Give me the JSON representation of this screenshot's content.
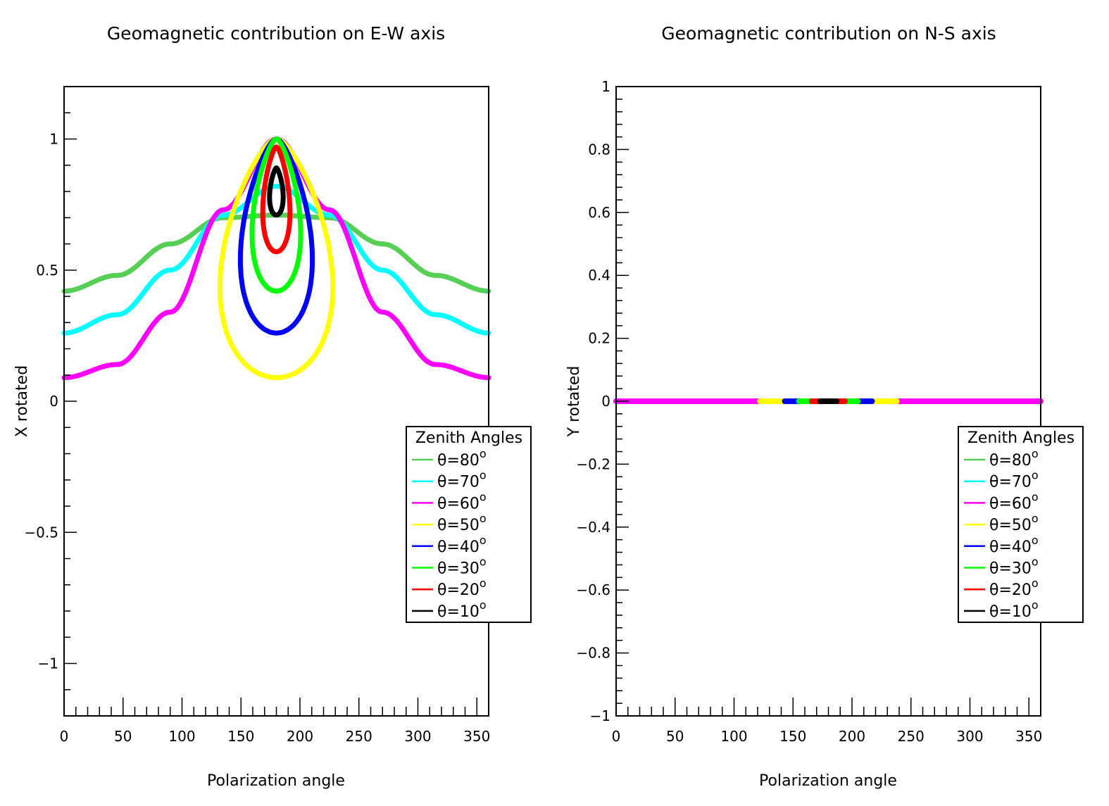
{
  "chart_data": [
    {
      "type": "scatter",
      "title": "Geomagnetic contribution on E-W axis",
      "xlabel": "Polarization angle",
      "ylabel": "X rotated",
      "xlim": [
        0,
        360
      ],
      "ylim": [
        -1.2,
        1.2
      ],
      "x_ticks": [
        "0",
        "50",
        "100",
        "150",
        "200",
        "250",
        "300",
        "350"
      ],
      "y_ticks": [
        {
          "value": 1,
          "label": "1"
        },
        {
          "value": 0.5,
          "label": "0.5"
        },
        {
          "value": 0,
          "label": "0"
        },
        {
          "value": -0.5,
          "label": "−0.5"
        },
        {
          "value": -1,
          "label": "−1"
        }
      ],
      "legend": {
        "title": "Zenith Angles",
        "placement": "right",
        "entries": [
          "θ=80",
          "θ=70",
          "θ=60",
          "θ=50",
          "θ=40",
          "θ=30",
          "θ=20",
          "θ=10"
        ],
        "superscript": "o"
      },
      "series": [
        {
          "name": "θ=80",
          "zenith_deg": 80,
          "color": "#55d055",
          "points": [
            [
              0,
              0.42
            ],
            [
              45,
              0.48
            ],
            [
              90,
              0.6
            ],
            [
              135,
              0.7
            ],
            [
              180,
              0.71
            ],
            [
              225,
              0.7
            ],
            [
              270,
              0.6
            ],
            [
              315,
              0.48
            ],
            [
              360,
              0.42
            ]
          ]
        },
        {
          "name": "θ=70",
          "zenith_deg": 70,
          "color": "#00ffff",
          "points": [
            [
              0,
              0.26
            ],
            [
              45,
              0.33
            ],
            [
              90,
              0.5
            ],
            [
              135,
              0.71
            ],
            [
              180,
              0.82
            ],
            [
              225,
              0.71
            ],
            [
              270,
              0.5
            ],
            [
              315,
              0.33
            ],
            [
              360,
              0.26
            ]
          ]
        },
        {
          "name": "θ=60",
          "zenith_deg": 60,
          "color": "#ff00ff",
          "points": [
            [
              0,
              0.09
            ],
            [
              45,
              0.14
            ],
            [
              90,
              0.34
            ],
            [
              135,
              0.73
            ],
            [
              180,
              1.0
            ],
            [
              225,
              0.73
            ],
            [
              270,
              0.34
            ],
            [
              315,
              0.14
            ],
            [
              360,
              0.09
            ]
          ]
        },
        {
          "name": "θ=50",
          "zenith_deg": 50,
          "color": "#ffff00",
          "loop": {
            "x_range": [
              122,
              238
            ],
            "y_range": [
              0.09,
              1.0
            ]
          }
        },
        {
          "name": "θ=40",
          "zenith_deg": 40,
          "color": "#0000ff",
          "loop": {
            "x_range": [
              143,
              217
            ],
            "y_range": [
              0.26,
              1.0
            ]
          }
        },
        {
          "name": "θ=30",
          "zenith_deg": 30,
          "color": "#00ff00",
          "loop": {
            "x_range": [
              155,
              205
            ],
            "y_range": [
              0.42,
              1.0
            ]
          }
        },
        {
          "name": "θ=20",
          "zenith_deg": 20,
          "color": "#ff0000",
          "loop": {
            "x_range": [
              166,
              194
            ],
            "y_range": [
              0.57,
              0.97
            ]
          }
        },
        {
          "name": "θ=10",
          "zenith_deg": 10,
          "color": "#000000",
          "loop": {
            "x_range": [
              173,
              187
            ],
            "y_range": [
              0.71,
              0.89
            ]
          }
        }
      ]
    },
    {
      "type": "scatter",
      "title": "Geomagnetic contribution on N-S axis",
      "xlabel": "Polarization angle",
      "ylabel": "Y rotated",
      "xlim": [
        0,
        360
      ],
      "ylim": [
        -1,
        1
      ],
      "x_ticks": [
        "0",
        "50",
        "100",
        "150",
        "200",
        "250",
        "300",
        "350"
      ],
      "y_ticks": [
        {
          "value": 1,
          "label": "1"
        },
        {
          "value": 0.8,
          "label": "0.8"
        },
        {
          "value": 0.6,
          "label": "0.6"
        },
        {
          "value": 0.4,
          "label": "0.4"
        },
        {
          "value": 0.2,
          "label": "0.2"
        },
        {
          "value": 0,
          "label": "0"
        },
        {
          "value": -0.2,
          "label": "−0.2"
        },
        {
          "value": -0.4,
          "label": "−0.4"
        },
        {
          "value": -0.6,
          "label": "−0.6"
        },
        {
          "value": -0.8,
          "label": "−0.8"
        },
        {
          "value": -1,
          "label": "−1"
        }
      ],
      "legend": {
        "title": "Zenith Angles",
        "placement": "right",
        "entries": [
          "θ=80",
          "θ=70",
          "θ=60",
          "θ=50",
          "θ=40",
          "θ=30",
          "θ=20",
          "θ=10"
        ],
        "superscript": "o"
      },
      "series": [
        {
          "name": "θ=80",
          "zenith_deg": 80,
          "color": "#55d055",
          "x_range": [
            0,
            360
          ],
          "y": 0
        },
        {
          "name": "θ=70",
          "zenith_deg": 70,
          "color": "#00ffff",
          "x_range": [
            0,
            360
          ],
          "y": 0
        },
        {
          "name": "θ=60",
          "zenith_deg": 60,
          "color": "#ff00ff",
          "x_range": [
            0,
            360
          ],
          "y": 0
        },
        {
          "name": "θ=50",
          "zenith_deg": 50,
          "color": "#ffff00",
          "x_range": [
            122,
            238
          ],
          "y": 0
        },
        {
          "name": "θ=40",
          "zenith_deg": 40,
          "color": "#0000ff",
          "x_range": [
            143,
            217
          ],
          "y": 0
        },
        {
          "name": "θ=30",
          "zenith_deg": 30,
          "color": "#00ff00",
          "x_range": [
            155,
            205
          ],
          "y": 0
        },
        {
          "name": "θ=20",
          "zenith_deg": 20,
          "color": "#ff0000",
          "x_range": [
            166,
            194
          ],
          "y": 0
        },
        {
          "name": "θ=10",
          "zenith_deg": 10,
          "color": "#000000",
          "x_range": [
            173,
            187
          ],
          "y": 0
        }
      ]
    }
  ]
}
